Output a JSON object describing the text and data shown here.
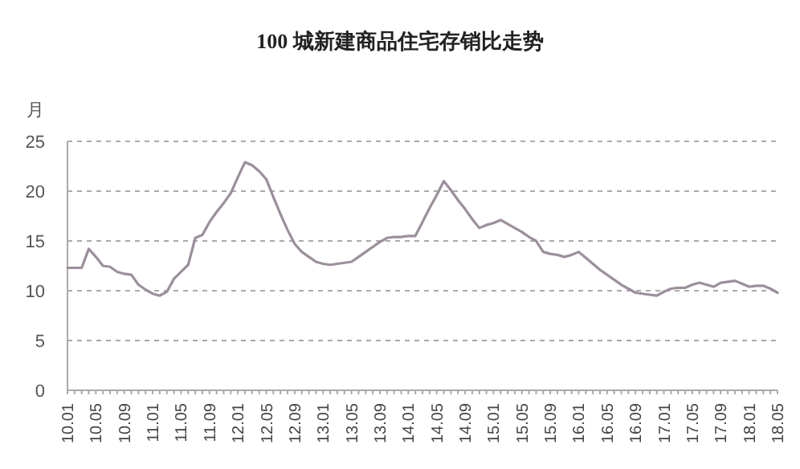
{
  "chart_data": {
    "type": "line",
    "title": "100 城新建商品住宅存销比走势",
    "ylabel": "月",
    "categories": [
      "10.01",
      null,
      null,
      null,
      "10.05",
      null,
      null,
      null,
      "10.09",
      null,
      null,
      null,
      "11.01",
      null,
      null,
      null,
      "11.05",
      null,
      null,
      null,
      "11.09",
      null,
      null,
      null,
      "12.01",
      null,
      null,
      null,
      "12.05",
      null,
      null,
      null,
      "12.09",
      null,
      null,
      null,
      "13.01",
      null,
      null,
      null,
      "13.05",
      null,
      null,
      null,
      "13.09",
      null,
      null,
      null,
      "14.01",
      null,
      null,
      null,
      "14.05",
      null,
      null,
      null,
      "14.09",
      null,
      null,
      null,
      "15.01",
      null,
      null,
      null,
      "15.05",
      null,
      null,
      null,
      "15.09",
      null,
      null,
      null,
      "16.01",
      null,
      null,
      null,
      "16.05",
      null,
      null,
      null,
      "16.09",
      null,
      null,
      null,
      "17.01",
      null,
      null,
      null,
      "17.05",
      null,
      null,
      null,
      "17.09",
      null,
      null,
      null,
      "18.01",
      null,
      null,
      null,
      "18.05"
    ],
    "series": [
      {
        "color": "#9b8f9b",
        "values": [
          12.3,
          12.3,
          12.3,
          14.2,
          13.4,
          12.5,
          12.4,
          11.9,
          11.7,
          11.6,
          10.6,
          10.1,
          9.7,
          9.5,
          9.9,
          11.2,
          11.9,
          12.6,
          15.3,
          15.6,
          16.9,
          17.9,
          18.8,
          19.8,
          21.4,
          22.9,
          22.6,
          22.0,
          21.2,
          19.4,
          17.7,
          16.1,
          14.7,
          13.9,
          13.4,
          12.9,
          12.7,
          12.6,
          12.7,
          12.8,
          12.9,
          13.4,
          13.9,
          14.4,
          14.9,
          15.3,
          15.4,
          15.4,
          15.5,
          15.5,
          16.9,
          18.3,
          19.6,
          21.0,
          20.1,
          19.1,
          18.2,
          17.2,
          16.3,
          16.6,
          16.8,
          17.1,
          16.7,
          16.3,
          15.9,
          15.4,
          15.0,
          13.9,
          13.7,
          13.6,
          13.4,
          13.6,
          13.9,
          13.3,
          12.7,
          12.1,
          11.6,
          11.1,
          10.6,
          10.2,
          9.8,
          9.7,
          9.6,
          9.5,
          9.9,
          10.2,
          10.3,
          10.3,
          10.6,
          10.8,
          10.6,
          10.4,
          10.8,
          10.9,
          11.0,
          10.7,
          10.4,
          10.5,
          10.5,
          10.2,
          9.8
        ]
      }
    ],
    "ylim": [
      0,
      25
    ],
    "yticks": [
      0,
      5,
      10,
      15,
      20,
      25
    ],
    "grid": "y"
  }
}
